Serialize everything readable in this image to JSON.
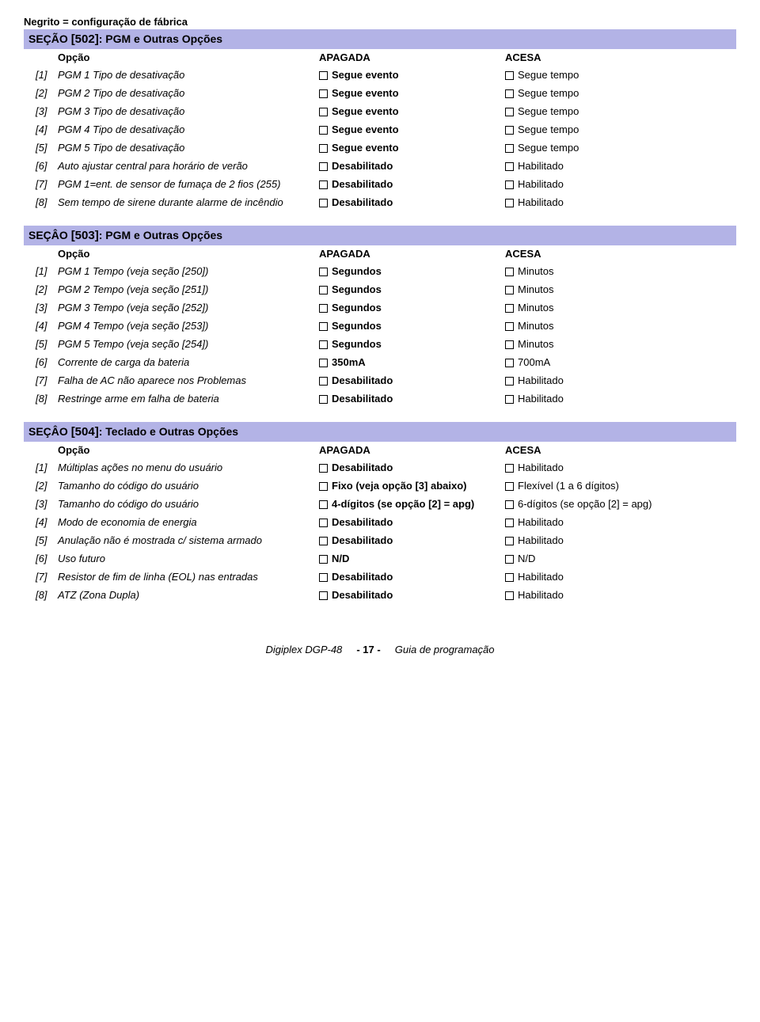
{
  "bold_note": "Negrito = configuração de fábrica",
  "header_labels": {
    "opcao": "Opção",
    "apagada": "APAGADA",
    "acesa": "ACESA"
  },
  "sections": [
    {
      "prefix": "SEÇÃO ",
      "num": "[502]",
      "suffix": ": PGM e Outras Opções",
      "rows": [
        {
          "n": "[1]",
          "desc": "PGM 1 Tipo de desativação",
          "a": "Segue evento",
          "a_bold": true,
          "b": "Segue tempo",
          "b_bold": false
        },
        {
          "n": "[2]",
          "desc": "PGM 2 Tipo de desativação",
          "a": "Segue evento",
          "a_bold": true,
          "b": "Segue tempo",
          "b_bold": false
        },
        {
          "n": "[3]",
          "desc": "PGM 3 Tipo de desativação",
          "a": "Segue evento",
          "a_bold": true,
          "b": "Segue tempo",
          "b_bold": false
        },
        {
          "n": "[4]",
          "desc": "PGM 4 Tipo de desativação",
          "a": "Segue evento",
          "a_bold": true,
          "b": "Segue tempo",
          "b_bold": false
        },
        {
          "n": "[5]",
          "desc": "PGM 5 Tipo de desativação",
          "a": "Segue evento",
          "a_bold": true,
          "b": "Segue tempo",
          "b_bold": false
        },
        {
          "n": "[6]",
          "desc": "Auto ajustar central para horário de verão",
          "a": "Desabilitado",
          "a_bold": true,
          "b": "Habilitado",
          "b_bold": false
        },
        {
          "n": "[7]",
          "desc": "PGM 1=ent. de sensor de fumaça de 2 fios (255)",
          "a": "Desabilitado",
          "a_bold": true,
          "b": "Habilitado",
          "b_bold": false
        },
        {
          "n": "[8]",
          "desc": "Sem tempo de sirene durante alarme de incêndio",
          "a": "Desabilitado",
          "a_bold": true,
          "b": "Habilitado",
          "b_bold": false
        }
      ]
    },
    {
      "prefix": "SEÇÂO ",
      "num": "[503]",
      "suffix": ": PGM e Outras Opções",
      "rows": [
        {
          "n": "[1]",
          "desc": "PGM 1 Tempo (veja seção [250])",
          "a": "Segundos",
          "a_bold": true,
          "b": "Minutos",
          "b_bold": false
        },
        {
          "n": "[2]",
          "desc": "PGM 2 Tempo (veja seção [251])",
          "a": "Segundos",
          "a_bold": true,
          "b": "Minutos",
          "b_bold": false
        },
        {
          "n": "[3]",
          "desc": "PGM 3 Tempo (veja seção [252])",
          "a": "Segundos",
          "a_bold": true,
          "b": "Minutos",
          "b_bold": false
        },
        {
          "n": "[4]",
          "desc": "PGM 4 Tempo (veja seção [253])",
          "a": "Segundos",
          "a_bold": true,
          "b": "Minutos",
          "b_bold": false
        },
        {
          "n": "[5]",
          "desc": "PGM 5 Tempo (veja seção [254])",
          "a": "Segundos",
          "a_bold": true,
          "b": "Minutos",
          "b_bold": false
        },
        {
          "n": "[6]",
          "desc": "Corrente de carga da bateria",
          "a": "350mA",
          "a_bold": true,
          "b": "700mA",
          "b_bold": false
        },
        {
          "n": "[7]",
          "desc": "Falha de AC não aparece nos Problemas",
          "a": "Desabilitado",
          "a_bold": true,
          "b": "Habilitado",
          "b_bold": false
        },
        {
          "n": "[8]",
          "desc": "Restringe arme em falha de bateria",
          "a": "Desabilitado",
          "a_bold": true,
          "b": "Habilitado",
          "b_bold": false
        }
      ]
    },
    {
      "prefix": "SEÇÂO ",
      "num": "[504]",
      "suffix": ": Teclado e Outras Opções",
      "rows": [
        {
          "n": "[1]",
          "desc": "Múltiplas ações no menu do usuário",
          "a": "Desabilitado",
          "a_bold": true,
          "b": "Habilitado",
          "b_bold": false
        },
        {
          "n": "[2]",
          "desc": "Tamanho do código do usuário",
          "a": "Fixo (veja opção [3] abaixo)",
          "a_bold": true,
          "b": "Flexível (1 a 6 dígitos)",
          "b_bold": false
        },
        {
          "n": "[3]",
          "desc": "Tamanho do código do usuário",
          "a": "4-dígitos (se opção [2] = apg)",
          "a_bold": true,
          "b": "6-dígitos (se opção [2] = apg)",
          "b_bold": false
        },
        {
          "n": "[4]",
          "desc": "Modo de economia de energia",
          "a": "Desabilitado",
          "a_bold": true,
          "b": "Habilitado",
          "b_bold": false
        },
        {
          "n": "[5]",
          "desc": "Anulação não é mostrada c/ sistema armado",
          "a": "Desabilitado",
          "a_bold": true,
          "b": "Habilitado",
          "b_bold": false
        },
        {
          "n": "[6]",
          "desc": "Uso futuro",
          "a": "N/D",
          "a_bold": true,
          "b": "N/D",
          "b_bold": false
        },
        {
          "n": "[7]",
          "desc": "Resistor de fim de linha (EOL) nas entradas",
          "a": "Desabilitado",
          "a_bold": true,
          "b": "Habilitado",
          "b_bold": false
        },
        {
          "n": "[8]",
          "desc": "ATZ (Zona Dupla)",
          "a": "Desabilitado",
          "a_bold": true,
          "b": "Habilitado",
          "b_bold": false
        }
      ]
    }
  ],
  "footer": {
    "left": "Digiplex DGP-48",
    "page": "- 17 -",
    "right": "Guia de programação"
  }
}
